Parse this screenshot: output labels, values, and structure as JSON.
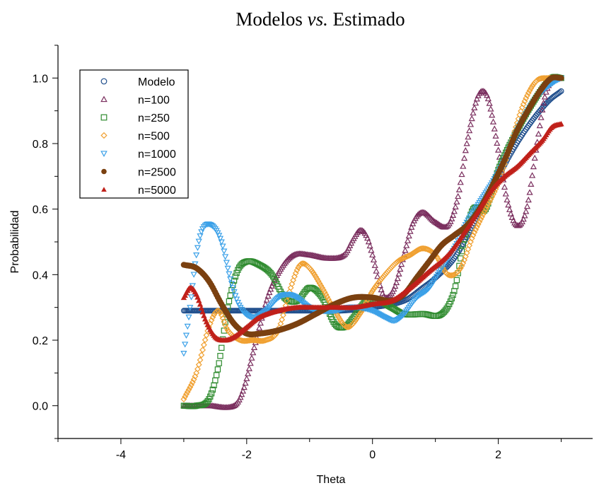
{
  "chart_data": {
    "type": "line",
    "title": "Modelos vs. Estimado",
    "title_parts": {
      "a": "Modelos ",
      "b": "vs.",
      "c": " Estimado"
    },
    "xlabel": "Theta",
    "ylabel": "Probabilidad",
    "xlim": [
      -5,
      3.5
    ],
    "ylim": [
      -0.1,
      1.1
    ],
    "xticks": [
      -4,
      -2,
      0,
      2
    ],
    "xtick_labels": [
      "-4",
      "-2",
      "0",
      "2"
    ],
    "yticks": [
      0.0,
      0.2,
      0.4,
      0.6,
      0.8,
      1.0
    ],
    "ytick_labels": [
      "0.0",
      "0.2",
      "0.4",
      "0.6",
      "0.8",
      "1.0"
    ],
    "grid": false,
    "legend_position": "top-left",
    "series": [
      {
        "name": "Modelo",
        "color": "#1f4e8c",
        "marker": "circle",
        "points": [
          [
            -3.0,
            0.29
          ],
          [
            -2.5,
            0.29
          ],
          [
            -2.0,
            0.29
          ],
          [
            -1.5,
            0.29
          ],
          [
            -1.0,
            0.29
          ],
          [
            -0.5,
            0.29
          ],
          [
            0.0,
            0.3
          ],
          [
            0.5,
            0.32
          ],
          [
            0.8,
            0.36
          ],
          [
            1.0,
            0.39
          ],
          [
            1.3,
            0.45
          ],
          [
            1.6,
            0.55
          ],
          [
            1.9,
            0.66
          ],
          [
            2.2,
            0.77
          ],
          [
            2.5,
            0.86
          ],
          [
            2.8,
            0.93
          ],
          [
            3.0,
            0.96
          ]
        ]
      },
      {
        "name": "n=100",
        "color": "#7a2e5e",
        "marker": "triangle-up",
        "points": [
          [
            -3.0,
            0.0
          ],
          [
            -2.6,
            0.0
          ],
          [
            -2.2,
            0.0
          ],
          [
            -2.05,
            0.05
          ],
          [
            -1.85,
            0.2
          ],
          [
            -1.65,
            0.34
          ],
          [
            -1.45,
            0.42
          ],
          [
            -1.25,
            0.46
          ],
          [
            -1.0,
            0.46
          ],
          [
            -0.7,
            0.45
          ],
          [
            -0.45,
            0.46
          ],
          [
            -0.3,
            0.51
          ],
          [
            -0.2,
            0.535
          ],
          [
            -0.1,
            0.52
          ],
          [
            0.0,
            0.46
          ],
          [
            0.1,
            0.38
          ],
          [
            0.2,
            0.33
          ],
          [
            0.35,
            0.36
          ],
          [
            0.5,
            0.46
          ],
          [
            0.65,
            0.56
          ],
          [
            0.8,
            0.59
          ],
          [
            1.0,
            0.56
          ],
          [
            1.2,
            0.55
          ],
          [
            1.35,
            0.63
          ],
          [
            1.5,
            0.8
          ],
          [
            1.65,
            0.93
          ],
          [
            1.75,
            0.96
          ],
          [
            1.85,
            0.93
          ],
          [
            2.0,
            0.78
          ],
          [
            2.15,
            0.62
          ],
          [
            2.3,
            0.55
          ],
          [
            2.45,
            0.6
          ],
          [
            2.6,
            0.78
          ],
          [
            2.75,
            0.95
          ],
          [
            2.9,
            1.0
          ],
          [
            3.0,
            1.0
          ]
        ]
      },
      {
        "name": "n=250",
        "color": "#2e8b2e",
        "marker": "square",
        "points": [
          [
            -3.0,
            0.0
          ],
          [
            -2.8,
            0.0
          ],
          [
            -2.6,
            0.02
          ],
          [
            -2.45,
            0.12
          ],
          [
            -2.3,
            0.3
          ],
          [
            -2.15,
            0.41
          ],
          [
            -2.0,
            0.44
          ],
          [
            -1.8,
            0.43
          ],
          [
            -1.6,
            0.4
          ],
          [
            -1.4,
            0.33
          ],
          [
            -1.2,
            0.32
          ],
          [
            -1.0,
            0.36
          ],
          [
            -0.8,
            0.33
          ],
          [
            -0.6,
            0.25
          ],
          [
            -0.45,
            0.24
          ],
          [
            -0.3,
            0.27
          ],
          [
            -0.1,
            0.32
          ],
          [
            0.1,
            0.32
          ],
          [
            0.3,
            0.3
          ],
          [
            0.5,
            0.28
          ],
          [
            0.8,
            0.28
          ],
          [
            1.1,
            0.28
          ],
          [
            1.3,
            0.35
          ],
          [
            1.45,
            0.5
          ],
          [
            1.6,
            0.6
          ],
          [
            1.8,
            0.6
          ],
          [
            2.0,
            0.72
          ],
          [
            2.3,
            0.84
          ],
          [
            2.6,
            0.94
          ],
          [
            2.85,
            1.0
          ],
          [
            3.0,
            1.0
          ]
        ]
      },
      {
        "name": "n=500",
        "color": "#f0a030",
        "marker": "diamond",
        "points": [
          [
            -3.0,
            0.02
          ],
          [
            -2.8,
            0.1
          ],
          [
            -2.6,
            0.24
          ],
          [
            -2.45,
            0.29
          ],
          [
            -2.3,
            0.23
          ],
          [
            -2.1,
            0.2
          ],
          [
            -1.9,
            0.2
          ],
          [
            -1.7,
            0.2
          ],
          [
            -1.5,
            0.23
          ],
          [
            -1.3,
            0.36
          ],
          [
            -1.15,
            0.43
          ],
          [
            -1.0,
            0.42
          ],
          [
            -0.8,
            0.36
          ],
          [
            -0.6,
            0.29
          ],
          [
            -0.4,
            0.24
          ],
          [
            -0.2,
            0.28
          ],
          [
            0.0,
            0.35
          ],
          [
            0.2,
            0.4
          ],
          [
            0.4,
            0.44
          ],
          [
            0.6,
            0.46
          ],
          [
            0.8,
            0.48
          ],
          [
            1.0,
            0.46
          ],
          [
            1.2,
            0.4
          ],
          [
            1.4,
            0.42
          ],
          [
            1.6,
            0.52
          ],
          [
            1.8,
            0.6
          ],
          [
            2.0,
            0.68
          ],
          [
            2.2,
            0.8
          ],
          [
            2.4,
            0.92
          ],
          [
            2.6,
            0.99
          ],
          [
            2.8,
            1.0
          ],
          [
            3.0,
            1.0
          ]
        ]
      },
      {
        "name": "n=1000",
        "color": "#3aa0e8",
        "marker": "triangle-down",
        "points": [
          [
            -3.0,
            0.16
          ],
          [
            -2.9,
            0.3
          ],
          [
            -2.8,
            0.46
          ],
          [
            -2.7,
            0.54
          ],
          [
            -2.55,
            0.55
          ],
          [
            -2.4,
            0.5
          ],
          [
            -2.25,
            0.38
          ],
          [
            -2.1,
            0.3
          ],
          [
            -1.9,
            0.27
          ],
          [
            -1.7,
            0.29
          ],
          [
            -1.5,
            0.33
          ],
          [
            -1.35,
            0.34
          ],
          [
            -1.2,
            0.33
          ],
          [
            -1.0,
            0.3
          ],
          [
            -0.8,
            0.29
          ],
          [
            -0.6,
            0.29
          ],
          [
            -0.4,
            0.3
          ],
          [
            -0.2,
            0.3
          ],
          [
            0.0,
            0.29
          ],
          [
            0.2,
            0.27
          ],
          [
            0.35,
            0.26
          ],
          [
            0.5,
            0.28
          ],
          [
            0.7,
            0.33
          ],
          [
            0.9,
            0.36
          ],
          [
            1.1,
            0.42
          ],
          [
            1.3,
            0.48
          ],
          [
            1.5,
            0.56
          ],
          [
            1.7,
            0.62
          ],
          [
            1.9,
            0.68
          ],
          [
            2.1,
            0.75
          ],
          [
            2.3,
            0.84
          ],
          [
            2.5,
            0.91
          ],
          [
            2.7,
            0.96
          ],
          [
            2.9,
            0.99
          ],
          [
            3.0,
            1.0
          ]
        ]
      },
      {
        "name": "n=2500",
        "color": "#7a4010",
        "marker": "circle-filled",
        "points": [
          [
            -3.0,
            0.43
          ],
          [
            -2.8,
            0.42
          ],
          [
            -2.6,
            0.38
          ],
          [
            -2.4,
            0.31
          ],
          [
            -2.2,
            0.25
          ],
          [
            -2.0,
            0.22
          ],
          [
            -1.8,
            0.22
          ],
          [
            -1.5,
            0.23
          ],
          [
            -1.2,
            0.25
          ],
          [
            -0.9,
            0.28
          ],
          [
            -0.6,
            0.31
          ],
          [
            -0.3,
            0.33
          ],
          [
            0.0,
            0.33
          ],
          [
            0.3,
            0.32
          ],
          [
            0.5,
            0.34
          ],
          [
            0.7,
            0.39
          ],
          [
            0.9,
            0.44
          ],
          [
            1.1,
            0.49
          ],
          [
            1.3,
            0.52
          ],
          [
            1.5,
            0.55
          ],
          [
            1.7,
            0.6
          ],
          [
            1.9,
            0.67
          ],
          [
            2.1,
            0.75
          ],
          [
            2.3,
            0.84
          ],
          [
            2.5,
            0.91
          ],
          [
            2.7,
            0.97
          ],
          [
            2.85,
            1.0
          ],
          [
            3.0,
            1.0
          ]
        ]
      },
      {
        "name": "n=5000",
        "color": "#c0201a",
        "marker": "triangle-up-filled",
        "points": [
          [
            -3.0,
            0.33
          ],
          [
            -2.9,
            0.36
          ],
          [
            -2.8,
            0.34
          ],
          [
            -2.65,
            0.26
          ],
          [
            -2.5,
            0.21
          ],
          [
            -2.35,
            0.2
          ],
          [
            -2.2,
            0.21
          ],
          [
            -2.0,
            0.24
          ],
          [
            -1.8,
            0.27
          ],
          [
            -1.5,
            0.29
          ],
          [
            -1.2,
            0.3
          ],
          [
            -0.9,
            0.3
          ],
          [
            -0.6,
            0.3
          ],
          [
            -0.3,
            0.3
          ],
          [
            0.0,
            0.31
          ],
          [
            0.3,
            0.32
          ],
          [
            0.6,
            0.36
          ],
          [
            0.9,
            0.41
          ],
          [
            1.2,
            0.46
          ],
          [
            1.5,
            0.54
          ],
          [
            1.7,
            0.6
          ],
          [
            1.9,
            0.66
          ],
          [
            2.1,
            0.7
          ],
          [
            2.3,
            0.73
          ],
          [
            2.5,
            0.77
          ],
          [
            2.7,
            0.81
          ],
          [
            2.85,
            0.85
          ],
          [
            3.0,
            0.86
          ]
        ]
      }
    ]
  }
}
